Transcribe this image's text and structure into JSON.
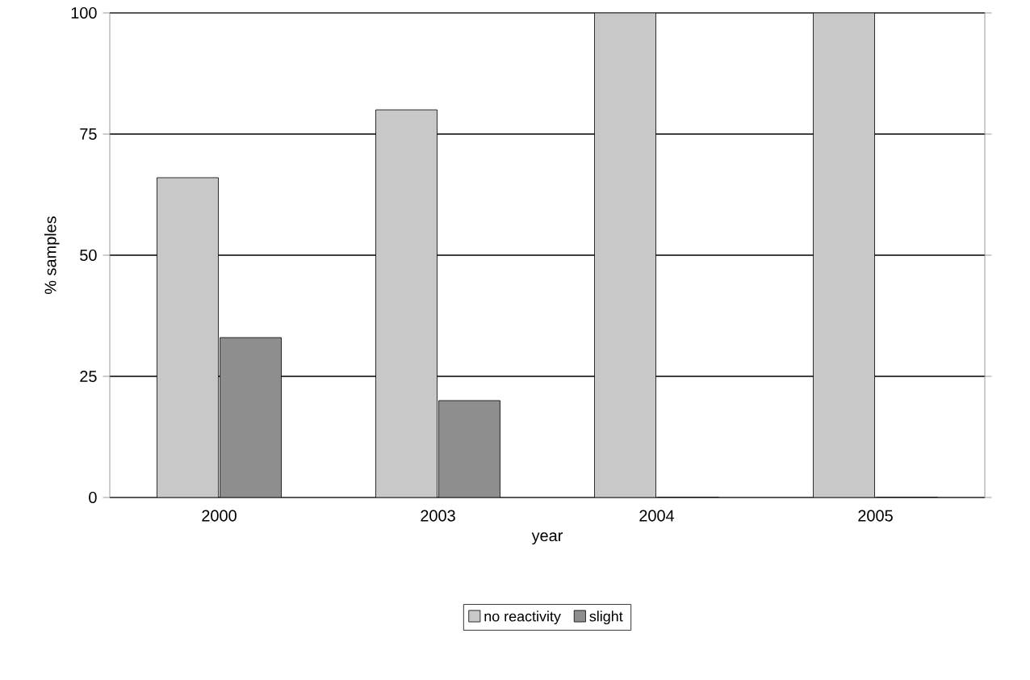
{
  "chart_data": {
    "type": "bar",
    "xlabel": "year",
    "ylabel": "% samples",
    "categories": [
      "2000",
      "2003",
      "2004",
      "2005"
    ],
    "series": [
      {
        "name": "no reactivity",
        "color": "#c8c8c8",
        "values": [
          66,
          80,
          100,
          100
        ]
      },
      {
        "name": "slight",
        "color": "#8e8e8e",
        "values": [
          33,
          20,
          0,
          0
        ]
      }
    ],
    "ylim": [
      0,
      100
    ],
    "yticks": [
      0,
      25,
      50,
      75,
      100
    ],
    "grid": "y",
    "legend": "bottom"
  }
}
